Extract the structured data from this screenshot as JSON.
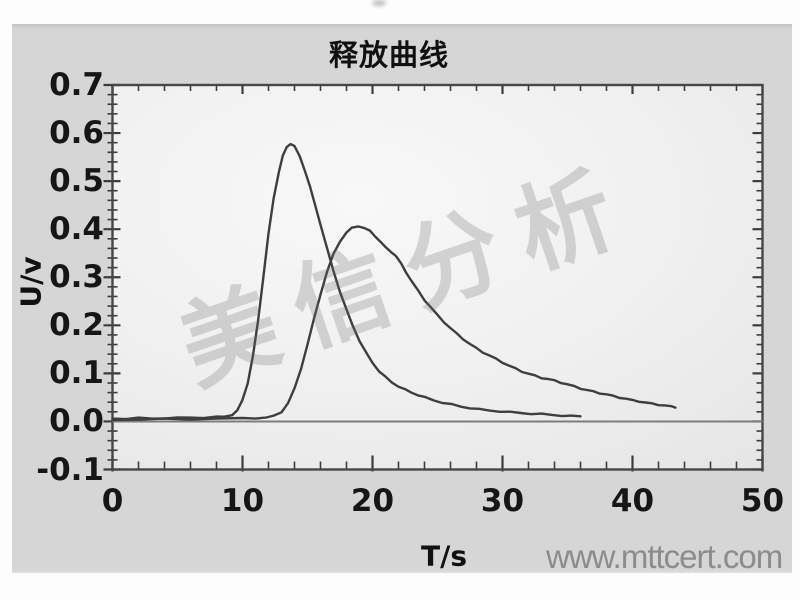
{
  "title": "释放曲线",
  "axis": {
    "x_label": "T/s",
    "y_label": "U/v",
    "x_tick_labels": [
      "0",
      "10",
      "20",
      "30",
      "40",
      "50"
    ],
    "y_tick_labels": [
      "0.7",
      "0.6",
      "0.5",
      "0.4",
      "0.3",
      "0.2",
      "0.1",
      "0.0",
      "-0.1"
    ]
  },
  "watermarks": {
    "diagonal": "美信分析",
    "site": "www.mttcert.com"
  },
  "colors": {
    "panel_background": "#d6d6d6",
    "plot_background_center": "#f8f8f8",
    "plot_background_edge": "#e5e5e5",
    "axis_frame": "#474747",
    "tick": "#3c3c3c",
    "zero_line": "#7d7d7d",
    "curve": "#3e3e3e",
    "tick_label": "#161616",
    "diagonal_watermark": "#9a9a9a",
    "site_watermark": "#8c8c8c"
  },
  "chart_data": {
    "type": "line",
    "title": "释放曲线",
    "xlabel": "T/s",
    "ylabel": "U/v",
    "xlim": [
      0,
      50
    ],
    "ylim": [
      -0.1,
      0.7
    ],
    "x_major_ticks": [
      0,
      10,
      20,
      30,
      40,
      50
    ],
    "x_minor_step": 2,
    "y_major_ticks": [
      0.7,
      0.6,
      0.5,
      0.4,
      0.3,
      0.2,
      0.1,
      0.0,
      -0.1
    ],
    "y_minor_step": 0.02,
    "grid": false,
    "legend": "none",
    "zero_line": 0.0,
    "series": [
      {
        "id": "sharp-peak-curve",
        "peak": {
          "x": 13.7,
          "y": 0.58
        },
        "points": [
          [
            0,
            0.006
          ],
          [
            1,
            0.006
          ],
          [
            2,
            0.007
          ],
          [
            3,
            0.006
          ],
          [
            4,
            0.007
          ],
          [
            5,
            0.007
          ],
          [
            6,
            0.008
          ],
          [
            7,
            0.008
          ],
          [
            8,
            0.009
          ],
          [
            8.6,
            0.01
          ],
          [
            9.2,
            0.014
          ],
          [
            9.6,
            0.022
          ],
          [
            10.0,
            0.045
          ],
          [
            10.4,
            0.08
          ],
          [
            10.8,
            0.135
          ],
          [
            11.2,
            0.21
          ],
          [
            11.6,
            0.3
          ],
          [
            12.0,
            0.39
          ],
          [
            12.4,
            0.465
          ],
          [
            12.8,
            0.52
          ],
          [
            13.1,
            0.552
          ],
          [
            13.4,
            0.571
          ],
          [
            13.7,
            0.578
          ],
          [
            14.0,
            0.572
          ],
          [
            14.4,
            0.552
          ],
          [
            14.8,
            0.522
          ],
          [
            15.2,
            0.487
          ],
          [
            15.6,
            0.449
          ],
          [
            16.0,
            0.41
          ],
          [
            16.5,
            0.36
          ],
          [
            17.0,
            0.313
          ],
          [
            17.5,
            0.27
          ],
          [
            18.0,
            0.232
          ],
          [
            18.5,
            0.198
          ],
          [
            19.0,
            0.168
          ],
          [
            19.5,
            0.143
          ],
          [
            20.0,
            0.122
          ],
          [
            20.5,
            0.105
          ],
          [
            21.0,
            0.092
          ],
          [
            21.5,
            0.081
          ],
          [
            22.0,
            0.073
          ],
          [
            22.5,
            0.066
          ],
          [
            23.0,
            0.06
          ],
          [
            23.5,
            0.055
          ],
          [
            24.0,
            0.05
          ],
          [
            24.7,
            0.044
          ],
          [
            25.4,
            0.039
          ],
          [
            26.1,
            0.035
          ],
          [
            26.8,
            0.031
          ],
          [
            27.5,
            0.028
          ],
          [
            28.2,
            0.025
          ],
          [
            29.0,
            0.023
          ],
          [
            29.8,
            0.021
          ],
          [
            30.6,
            0.019
          ],
          [
            31.4,
            0.018
          ],
          [
            32.2,
            0.016
          ],
          [
            33.0,
            0.015
          ],
          [
            33.8,
            0.014
          ],
          [
            34.6,
            0.012
          ],
          [
            35.3,
            0.011
          ],
          [
            36.0,
            0.011
          ]
        ]
      },
      {
        "id": "broad-peak-curve",
        "peak": {
          "x": 18.9,
          "y": 0.41
        },
        "points": [
          [
            0,
            0.004
          ],
          [
            2,
            0.004
          ],
          [
            4,
            0.005
          ],
          [
            6,
            0.005
          ],
          [
            8,
            0.006
          ],
          [
            10,
            0.006
          ],
          [
            11,
            0.007
          ],
          [
            11.8,
            0.008
          ],
          [
            12.4,
            0.011
          ],
          [
            13.0,
            0.02
          ],
          [
            13.5,
            0.038
          ],
          [
            14.0,
            0.068
          ],
          [
            14.5,
            0.11
          ],
          [
            15.0,
            0.16
          ],
          [
            15.5,
            0.213
          ],
          [
            16.0,
            0.265
          ],
          [
            16.5,
            0.311
          ],
          [
            17.0,
            0.348
          ],
          [
            17.5,
            0.375
          ],
          [
            18.0,
            0.393
          ],
          [
            18.4,
            0.402
          ],
          [
            18.9,
            0.407
          ],
          [
            19.4,
            0.402
          ],
          [
            19.8,
            0.396
          ],
          [
            20.2,
            0.386
          ],
          [
            20.6,
            0.374
          ],
          [
            21.0,
            0.362
          ],
          [
            21.4,
            0.354
          ],
          [
            21.8,
            0.344
          ],
          [
            22.2,
            0.328
          ],
          [
            22.6,
            0.31
          ],
          [
            23.0,
            0.292
          ],
          [
            23.5,
            0.272
          ],
          [
            24.0,
            0.253
          ],
          [
            24.5,
            0.237
          ],
          [
            25.0,
            0.221
          ],
          [
            25.5,
            0.207
          ],
          [
            26.0,
            0.194
          ],
          [
            26.5,
            0.182
          ],
          [
            27.0,
            0.171
          ],
          [
            27.5,
            0.161
          ],
          [
            28.0,
            0.152
          ],
          [
            28.5,
            0.144
          ],
          [
            29.0,
            0.137
          ],
          [
            29.5,
            0.13
          ],
          [
            30.0,
            0.123
          ],
          [
            30.5,
            0.116
          ],
          [
            31.0,
            0.11
          ],
          [
            31.5,
            0.104
          ],
          [
            32.0,
            0.099
          ],
          [
            32.5,
            0.095
          ],
          [
            33.0,
            0.091
          ],
          [
            33.5,
            0.088
          ],
          [
            34.0,
            0.085
          ],
          [
            34.5,
            0.081
          ],
          [
            35.0,
            0.077
          ],
          [
            35.5,
            0.073
          ],
          [
            36.0,
            0.069
          ],
          [
            36.5,
            0.065
          ],
          [
            37.0,
            0.062
          ],
          [
            37.5,
            0.059
          ],
          [
            38.0,
            0.056
          ],
          [
            38.5,
            0.053
          ],
          [
            39.0,
            0.05
          ],
          [
            39.5,
            0.047
          ],
          [
            40.0,
            0.044
          ],
          [
            40.5,
            0.042
          ],
          [
            41.0,
            0.039
          ],
          [
            41.5,
            0.037
          ],
          [
            42.0,
            0.035
          ],
          [
            42.5,
            0.033
          ],
          [
            43.0,
            0.031
          ],
          [
            43.3,
            0.03
          ]
        ]
      }
    ]
  }
}
